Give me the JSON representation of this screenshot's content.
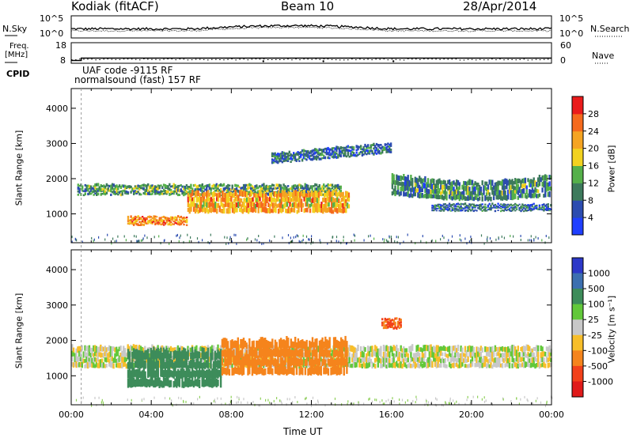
{
  "header": {
    "radar": "Kodiak (fitACF)",
    "beam": "Beam 10",
    "date": "28/Apr/2014"
  },
  "noise_panel": {
    "left_label": "N.Sky",
    "right_label": "N.Search",
    "left_ticks": [
      "10^5",
      "10^0"
    ],
    "right_ticks": [
      "10^5",
      "10^0"
    ]
  },
  "freq_panel": {
    "left_label_1": "Freq.",
    "left_label_2": "[MHz]",
    "right_label": "Nave",
    "left_ticks": [
      "18",
      "8"
    ],
    "right_ticks": [
      "60",
      "0"
    ],
    "freq_mhz": 10.5,
    "nave_typical": 20
  },
  "cpid": {
    "label": "CPID",
    "line1": "UAF code -9115 RF",
    "line2": "normalsound (fast) 157 RF"
  },
  "chart_data": [
    {
      "type": "heatmap",
      "name": "power",
      "ylabel": "Slant Range [km]",
      "ylim": [
        180,
        4560
      ],
      "yticks": [
        "1000",
        "2000",
        "3000",
        "4000"
      ],
      "xlabel": "",
      "xlim": [
        0,
        24
      ],
      "colorbar": {
        "label": "Power [dB]",
        "range": [
          0,
          32
        ],
        "ticks": [
          "4",
          "8",
          "12",
          "16",
          "20",
          "24",
          "28"
        ],
        "colors": [
          "#1f3fff",
          "#2c4cb0",
          "#3d7a5c",
          "#55b04a",
          "#f2d21f",
          "#f5a422",
          "#f56a1d",
          "#ea1b1b"
        ]
      },
      "features": [
        {
          "name": "upper band",
          "t0": 0.3,
          "t1": 13.5,
          "r0": 1500,
          "r1": 1800,
          "power": 12
        },
        {
          "name": "main echo",
          "t0": 5.8,
          "t1": 13.9,
          "r0": 1000,
          "r1": 1600,
          "power": 22
        },
        {
          "name": "near echo",
          "t0": 2.8,
          "t1": 5.8,
          "r0": 650,
          "r1": 900,
          "power": 24
        },
        {
          "name": "rising arc",
          "t0": 10.0,
          "t1": 16.0,
          "r0": 2500,
          "r1": 2800,
          "power": 8
        },
        {
          "name": "late band",
          "t0": 16.0,
          "t1": 24.0,
          "r0": 1500,
          "r1": 2100,
          "power": 10
        },
        {
          "name": "lower band",
          "t0": 18.0,
          "t1": 24.0,
          "r0": 1050,
          "r1": 1250,
          "power": 8
        }
      ]
    },
    {
      "type": "heatmap",
      "name": "velocity",
      "ylabel": "Slant Range [km]",
      "ylim": [
        180,
        4560
      ],
      "yticks": [
        "1000",
        "2000",
        "3000",
        "4000"
      ],
      "xlabel": "Time UT",
      "xlim": [
        0,
        24
      ],
      "xticks": [
        "00:00",
        "04:00",
        "08:00",
        "12:00",
        "16:00",
        "20:00",
        "00:00"
      ],
      "colorbar": {
        "label": "Velocity [m s⁻¹]",
        "ticks": [
          "1000",
          "500",
          "100",
          "25",
          "-25",
          "-100",
          "-500",
          "-1000"
        ],
        "colors": [
          "#2c38c8",
          "#3c6fb0",
          "#3d8c5a",
          "#62c83a",
          "#c8c8c8",
          "#f7be2a",
          "#f5841c",
          "#f2411a",
          "#e01a1a"
        ]
      },
      "features": [
        {
          "name": "background band",
          "t0": 0.0,
          "t1": 24.0,
          "r0": 1200,
          "r1": 1800,
          "velocity": 0
        },
        {
          "name": "approaching echo",
          "t0": 2.8,
          "t1": 7.5,
          "r0": 650,
          "r1": 1700,
          "velocity": 300
        },
        {
          "name": "receding echo",
          "t0": 7.5,
          "t1": 13.8,
          "r0": 1000,
          "r1": 2000,
          "velocity": -300
        },
        {
          "name": "late receding patch",
          "t0": 15.5,
          "t1": 16.5,
          "r0": 2300,
          "r1": 2600,
          "velocity": -500
        }
      ]
    }
  ]
}
